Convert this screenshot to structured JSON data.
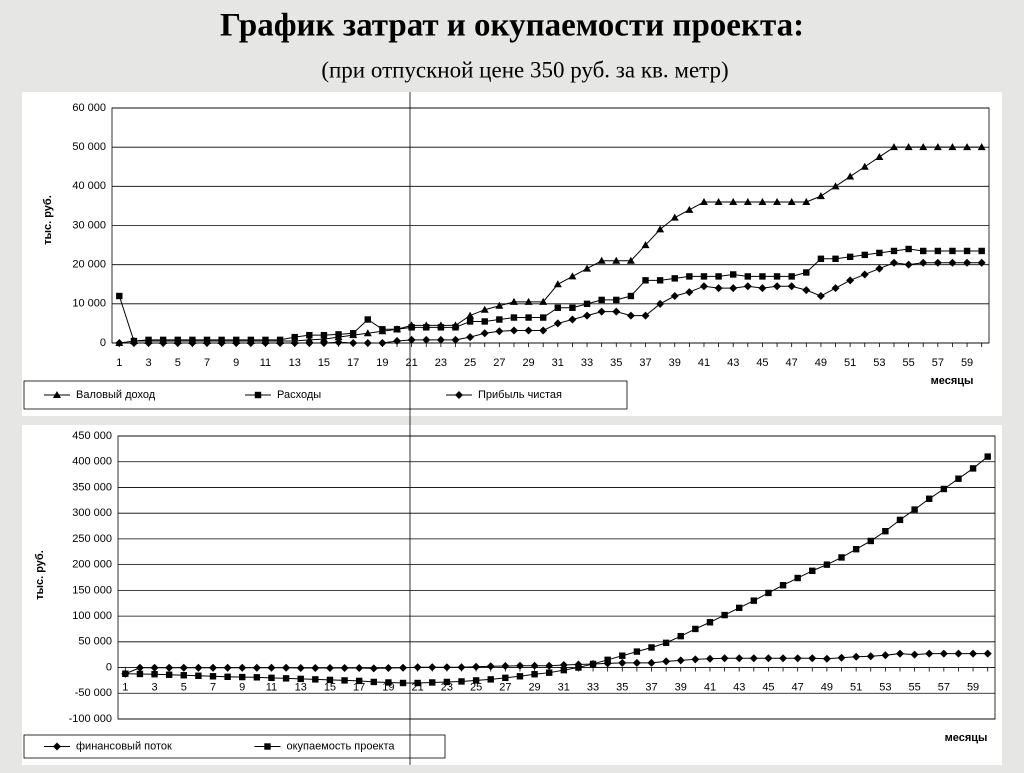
{
  "title": "График затрат и окупаемости проекта:",
  "subtitle": "(при отпускной цене 350 руб. за кв. метр)",
  "chart_data": [
    {
      "type": "line",
      "y_label": "тыс. руб.",
      "x_label": "месяцы",
      "grid": true,
      "legend": "bottom-left",
      "categories": [
        "1",
        null,
        "3",
        null,
        "5",
        null,
        "7",
        null,
        "9",
        null,
        "11",
        null,
        "13",
        null,
        "15",
        null,
        "17",
        null,
        "19",
        null,
        "21",
        null,
        "23",
        null,
        "25",
        null,
        "27",
        null,
        "29",
        null,
        "31",
        null,
        "33",
        null,
        "35",
        null,
        "37",
        null,
        "39",
        null,
        "41",
        null,
        "43",
        null,
        "45",
        null,
        "47",
        null,
        "49",
        null,
        "51",
        null,
        "53",
        null,
        "55",
        null,
        "57",
        null,
        "59",
        null
      ],
      "ylim": [
        0,
        60000
      ],
      "yticks": [
        0,
        {
          "value": 10000,
          "label": "10 000"
        },
        {
          "value": 20000,
          "label": "20 000"
        },
        {
          "value": 30000,
          "label": "30 000"
        },
        {
          "value": 40000,
          "label": "40 000"
        },
        {
          "value": 50000,
          "label": "50 000"
        },
        {
          "value": 60000,
          "label": "60 000"
        }
      ],
      "series": [
        {
          "name": "Валовый доход",
          "color": "#000000",
          "marker": "triangle",
          "values": [
            0,
            500,
            500,
            500,
            500,
            500,
            500,
            500,
            500,
            500,
            500,
            500,
            500,
            800,
            1000,
            1500,
            2000,
            2500,
            3000,
            3500,
            4500,
            4500,
            4500,
            4500,
            7000,
            8500,
            9500,
            10500,
            10500,
            10500,
            15000,
            17000,
            19000,
            21000,
            21000,
            21000,
            25000,
            29000,
            32000,
            34000,
            36000,
            36000,
            36000,
            36000,
            36000,
            36000,
            36000,
            36000,
            37500,
            40000,
            42500,
            45000,
            47500,
            50000,
            50000,
            50000,
            50000,
            50000,
            50000,
            50000
          ]
        },
        {
          "name": "Расходы",
          "color": "#000000",
          "marker": "square",
          "values": [
            12000,
            500,
            800,
            800,
            800,
            800,
            800,
            800,
            800,
            800,
            800,
            800,
            1500,
            2000,
            2000,
            2200,
            2500,
            6000,
            3500,
            3500,
            4000,
            4000,
            4000,
            4000,
            5500,
            5500,
            6000,
            6500,
            6500,
            6500,
            9000,
            9000,
            10000,
            11000,
            11000,
            12000,
            16000,
            16000,
            16500,
            17000,
            17000,
            17000,
            17500,
            17000,
            17000,
            17000,
            17000,
            18000,
            21500,
            21500,
            22000,
            22500,
            23000,
            23500,
            24000,
            23500,
            23500,
            23500,
            23500,
            23500
          ]
        },
        {
          "name": "Прибыль чистая",
          "color": "#000000",
          "marker": "diamond",
          "values": [
            0,
            0,
            0,
            0,
            0,
            0,
            0,
            0,
            0,
            0,
            0,
            0,
            0,
            0,
            0,
            200,
            0,
            0,
            0,
            500,
            800,
            800,
            800,
            800,
            1500,
            2500,
            3000,
            3200,
            3200,
            3200,
            5000,
            6000,
            7000,
            8000,
            8000,
            7000,
            7000,
            10000,
            12000,
            13000,
            14500,
            14000,
            14000,
            14500,
            14000,
            14500,
            14500,
            13500,
            12000,
            14000,
            16000,
            17500,
            19000,
            20500,
            20000,
            20500,
            20500,
            20500,
            20500,
            20500
          ]
        }
      ]
    },
    {
      "type": "line",
      "y_label": "тыс. руб.",
      "x_label": "месяцы",
      "grid": true,
      "legend": "bottom-left",
      "categories": [
        "1",
        null,
        "3",
        null,
        "5",
        null,
        "7",
        null,
        "9",
        null,
        "11",
        null,
        "13",
        null,
        "15",
        null,
        "17",
        null,
        "19",
        null,
        "21",
        null,
        "23",
        null,
        "25",
        null,
        "27",
        null,
        "29",
        null,
        "31",
        null,
        "33",
        null,
        "35",
        null,
        "37",
        null,
        "39",
        null,
        "41",
        null,
        "43",
        null,
        "45",
        null,
        "47",
        null,
        "49",
        null,
        "51",
        null,
        "53",
        null,
        "55",
        null,
        "57",
        null,
        "59",
        null
      ],
      "ylim": [
        -100000,
        450000
      ],
      "yticks": [
        {
          "value": -100000,
          "label": "-100 000"
        },
        {
          "value": -50000,
          "label": "-50 000"
        },
        0,
        {
          "value": 50000,
          "label": "50 000"
        },
        {
          "value": 100000,
          "label": "100 000"
        },
        {
          "value": 150000,
          "label": "150 000"
        },
        {
          "value": 200000,
          "label": "200 000"
        },
        {
          "value": 250000,
          "label": "250 000"
        },
        {
          "value": 300000,
          "label": "300 000"
        },
        {
          "value": 350000,
          "label": "350 000"
        },
        {
          "value": 400000,
          "label": "400 000"
        },
        {
          "value": 450000,
          "label": "450 000"
        }
      ],
      "series": [
        {
          "name": "финансовый поток",
          "color": "#000000",
          "marker": "diamond",
          "values": [
            -12000,
            -500,
            -500,
            -500,
            -500,
            -500,
            -500,
            -500,
            -500,
            -500,
            -500,
            -500,
            -1000,
            -1000,
            -1000,
            -1000,
            -1000,
            -1500,
            -1000,
            -500,
            500,
            500,
            500,
            500,
            1500,
            2500,
            3000,
            3500,
            3500,
            3500,
            5000,
            6000,
            7000,
            8000,
            9000,
            9000,
            9000,
            12000,
            14000,
            16000,
            17000,
            18000,
            18000,
            18000,
            18000,
            18000,
            18000,
            18000,
            17000,
            19000,
            21000,
            22000,
            24000,
            27000,
            25000,
            27000,
            27000,
            27000,
            27000,
            27000
          ]
        },
        {
          "name": "окупаемость проекта",
          "color": "#000000",
          "marker": "square",
          "values": [
            -12000,
            -12500,
            -13000,
            -14000,
            -15000,
            -16000,
            -17000,
            -18000,
            -18500,
            -19000,
            -20000,
            -21000,
            -22000,
            -23000,
            -24000,
            -25000,
            -26000,
            -28000,
            -29000,
            -30000,
            -30000,
            -29000,
            -28000,
            -27000,
            -25000,
            -23000,
            -20000,
            -17000,
            -13000,
            -10000,
            -5000,
            0,
            7000,
            15000,
            23000,
            31000,
            39000,
            48000,
            61000,
            75000,
            88000,
            102000,
            116000,
            130000,
            145000,
            160000,
            174000,
            188000,
            200000,
            214000,
            230000,
            246000,
            265000,
            287000,
            307000,
            328000,
            347000,
            367000,
            387000,
            410000
          ]
        }
      ]
    }
  ]
}
